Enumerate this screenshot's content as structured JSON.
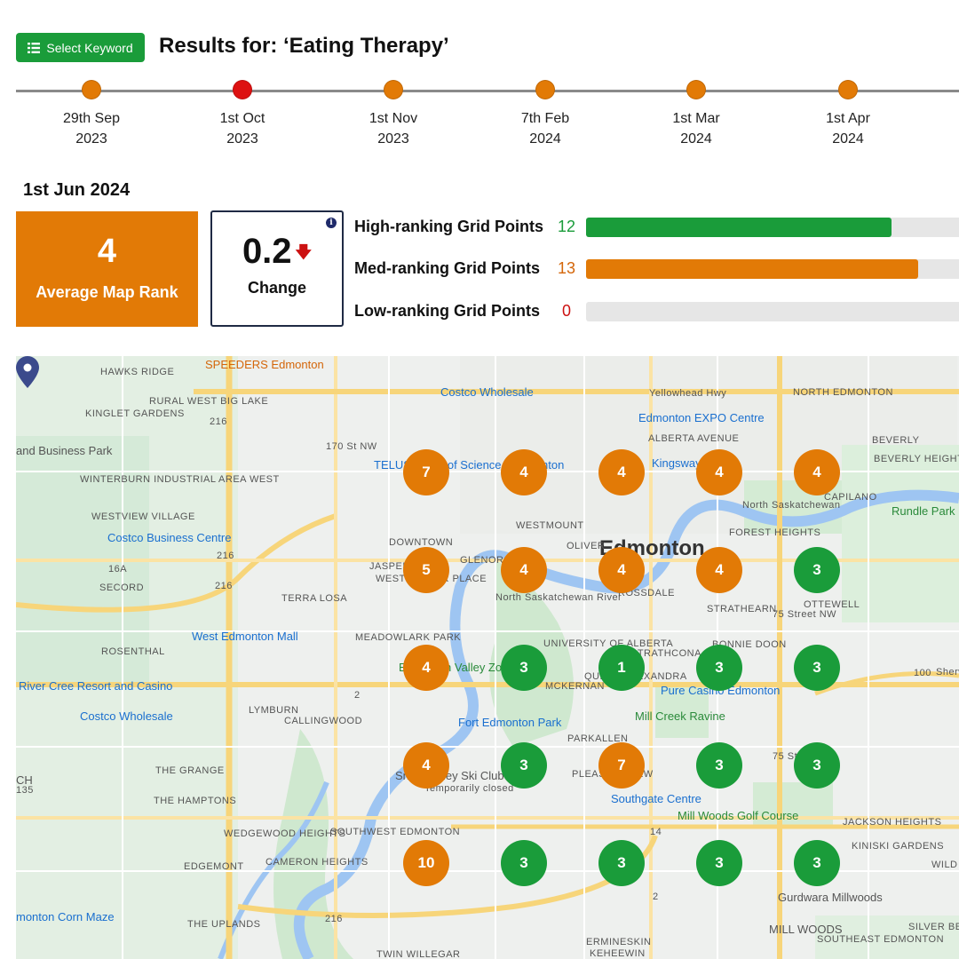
{
  "header": {
    "select_keyword_label": "Select Keyword",
    "title": "Results for: ‘Eating Therapy’"
  },
  "timeline": [
    {
      "day": "29th Sep",
      "year": "2023",
      "color": "#e27a06"
    },
    {
      "day": "1st Oct",
      "year": "2023",
      "color": "#dd1111"
    },
    {
      "day": "1st Nov",
      "year": "2023",
      "color": "#e27a06"
    },
    {
      "day": "7th Feb",
      "year": "2024",
      "color": "#e27a06"
    },
    {
      "day": "1st Mar",
      "year": "2024",
      "color": "#e27a06"
    },
    {
      "day": "1st Apr",
      "year": "2024",
      "color": "#e27a06"
    }
  ],
  "current_date": "1st Jun 2024",
  "average": {
    "value": "4",
    "label": "Average Map Rank"
  },
  "change": {
    "value": "0.2",
    "arrow": "🡇",
    "label": "Change",
    "info": "i"
  },
  "grid_points": {
    "high": {
      "label": "High-ranking Grid Points",
      "count": "12",
      "fraction": 0.82,
      "color": "#1a9c3a"
    },
    "med": {
      "label": "Med-ranking Grid Points",
      "count": "13",
      "fraction": 0.89,
      "color": "#e27a06"
    },
    "low": {
      "label": "Low-ranking Grid Points",
      "count": "0",
      "fraction": 0,
      "color": "#cc1111"
    }
  },
  "colors": {
    "high": "#1a9c3a",
    "med": "#e27a06"
  },
  "map": {
    "rank_grid": [
      [
        "7",
        "4",
        "4",
        "4",
        "4"
      ],
      [
        "5",
        "4",
        "4",
        "4",
        "3"
      ],
      [
        "4",
        "3",
        "1",
        "3",
        "3"
      ],
      [
        "4",
        "3",
        "7",
        "3",
        "3"
      ],
      [
        "10",
        "3",
        "3",
        "3",
        "3"
      ]
    ],
    "labels": {
      "hawks_ridge": "HAWKS RIDGE",
      "speeders": "SPEEDERS Edmonton",
      "costco_wholesale": "Costco Wholesale",
      "yellowhead": "Yellowhead Hwy",
      "north_edmonton": "NORTH EDMONTON",
      "rural_west": "RURAL WEST BIG LAKE",
      "kinglet": "KINGLET GARDENS",
      "expo": "Edmonton EXPO Centre",
      "alberta_avenue": "ALBERTA AVENUE",
      "beverly": "BEVERLY",
      "beverly_heights": "BEVERLY HEIGHTS",
      "business_park": "and Business Park",
      "winterburn": "WINTERBURN INDUSTRIAL AREA WEST",
      "telus": "TELUS World of Science - Edmonton",
      "kingsway": "Kingsway Mall",
      "capilano": "CAPILANO",
      "rundle": "Rundle Park",
      "westview": "WESTVIEW VILLAGE",
      "costco_business": "Costco Business Centre",
      "westmount": "WESTMOUNT",
      "edmonton": "Edmonton",
      "forest_heights": "FOREST HEIGHTS",
      "oliver": "OLIVER",
      "downtown": "DOWNTOWN",
      "glenora": "GLENORA",
      "jasper_place": "JASPER PLACE",
      "west_jasper": "WEST JASPER PLACE",
      "secord": "SECORD",
      "rossdale": "ROSSDALE",
      "strathearn": "STRATHEARN",
      "ottewell": "OTTEWELL",
      "terra_losa": "TERRA LOSA",
      "west_edmonton_mall": "West Edmonton Mall",
      "meadowlark": "MEADOWLARK PARK",
      "university": "UNIVERSITY OF ALBERTA",
      "strathcona": "STRATHCONA",
      "bonnie_doon": "BONNIE DOON",
      "rosenthal": "ROSENTHAL",
      "valley_zoo": "Edmonton Valley Zoo",
      "mckernan": "MCKERNAN",
      "queen_alexandra": "QUEEN ALEXANDRA",
      "pure_casino": "Pure Casino Edmonton",
      "river_cree": "River Cree Resort and Casino",
      "costco_wholesale2": "Costco Wholesale",
      "lymburn": "LYMBURN",
      "callingwood": "CALLINGWOOD",
      "mill_creek": "Mill Creek Ravine",
      "fort_edmonton": "Fort Edmonton Park",
      "parkallen": "PARKALLEN",
      "the_grange": "THE GRANGE",
      "pleasantview": "PLEASANTVIEW",
      "ski_club": "Snow Valley Ski Club",
      "temp_closed": "Temporarily closed",
      "ch": "CH",
      "num_135": "135",
      "the_hamptons": "THE HAMPTONS",
      "southgate": "Southgate Centre",
      "millwoods_golf": "Mill Woods Golf Course",
      "jackson_heights": "JACKSON HEIGHTS",
      "wedgewood": "WEDGEWOOD HEIGHTS",
      "southwest": "SOUTHWEST EDMONTON",
      "kiniski": "KINISKI GARDENS",
      "edgemont": "EDGEMONT",
      "cameron_heights": "CAMERON HEIGHTS",
      "wild_rose": "WILD R",
      "gurdwara": "Gurdwara Millwoods",
      "corn_maze": "monton Corn Maze",
      "the_uplands": "THE UPLANDS",
      "mill_woods": "MILL WOODS",
      "silver_berry": "SILVER BERRY",
      "southeast": "SOUTHEAST EDMONTON",
      "ermineskin": "ERMINESKIN",
      "keheewin": "KEHEEWIN",
      "twin_willegar": "TWIN WILLEGAR",
      "st_170": "170 St NW",
      "st_75": "75 Street NW",
      "st_75b": "75 Street NW",
      "north_sask": "North Saskatchewan River",
      "north_sask2": "North Saskatchewan",
      "hwy_216a": "216",
      "hwy_216b": "216",
      "hwy_216c": "216",
      "hwy_216d": "216",
      "hwy_16a": "16A",
      "hwy_2": "2",
      "hwy_14": "14",
      "hwy_2b": "2",
      "hwy_100": "100",
      "sherw": "Sherw"
    }
  }
}
